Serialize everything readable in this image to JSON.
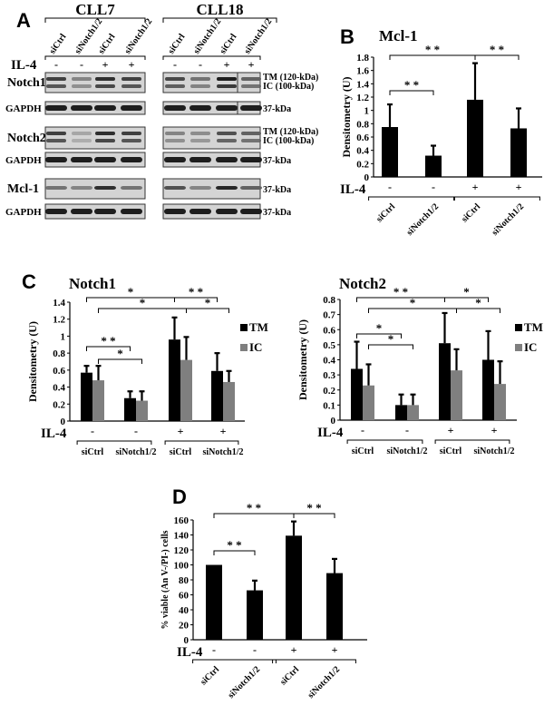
{
  "panels": {
    "A": {
      "letter": "A"
    },
    "B": {
      "letter": "B"
    },
    "C": {
      "letter": "C"
    },
    "D": {
      "letter": "D"
    }
  },
  "western_blot": {
    "groups": [
      "CLL7",
      "CLL18"
    ],
    "lanes": [
      "siCtrl",
      "siNotch1/2",
      "siCtrl",
      "siNotch1/2"
    ],
    "il4_label": "IL-4",
    "il4_signs": [
      "-",
      "-",
      "+",
      "+"
    ],
    "rows": [
      {
        "name": "Notch1",
        "right_labels": [
          "TM (120-kDa)",
          "IC (100-kDa)"
        ]
      },
      {
        "name": "GAPDH",
        "right_labels": [
          "37-kDa"
        ]
      },
      {
        "name": "Notch2",
        "right_labels": [
          "TM (120-kDa)",
          "IC (100-kDa)"
        ]
      },
      {
        "name": "GAPDH",
        "right_labels": [
          "37-kDa"
        ]
      },
      {
        "name": "Mcl-1",
        "right_labels": [
          "37-kDa"
        ]
      },
      {
        "name": "GAPDH",
        "right_labels": [
          "37-kDa"
        ]
      }
    ]
  },
  "chart_data": [
    {
      "panel": "B",
      "type": "bar",
      "title": "Mcl-1",
      "ylabel": "Densitometry (U)",
      "xlabel": "",
      "categories": [
        "siCtrl",
        "siNotch1/2",
        "siCtrl",
        "siNotch1/2"
      ],
      "il4": [
        "-",
        "-",
        "+",
        "+"
      ],
      "values": [
        0.75,
        0.32,
        1.16,
        0.73
      ],
      "errors": [
        0.34,
        0.15,
        0.55,
        0.3
      ],
      "ylim": [
        0,
        1.8
      ],
      "yticks": [
        "0",
        "0.2",
        "0.4",
        "0.6",
        "0.8",
        "1",
        "1.2",
        "1.4",
        "1.6",
        "1.8"
      ],
      "significance": [
        {
          "from": 0,
          "to": 1,
          "label": "**"
        },
        {
          "from": 0,
          "to": 2,
          "label": "**"
        },
        {
          "from": 2,
          "to": 3,
          "label": "**"
        }
      ],
      "color": "#000000"
    },
    {
      "panel": "C",
      "type": "bar",
      "title": "Notch1",
      "ylabel": "Densitometry (U)",
      "categories": [
        "siCtrl",
        "siNotch1/2",
        "siCtrl",
        "siNotch1/2"
      ],
      "il4": [
        "-",
        "-",
        "+",
        "+"
      ],
      "series": [
        {
          "name": "TM",
          "color": "#000000",
          "values": [
            0.57,
            0.27,
            0.96,
            0.59
          ],
          "errors": [
            0.08,
            0.08,
            0.26,
            0.21
          ]
        },
        {
          "name": "IC",
          "color": "#7f7f7f",
          "values": [
            0.48,
            0.24,
            0.72,
            0.46
          ],
          "errors": [
            0.17,
            0.11,
            0.27,
            0.13
          ]
        }
      ],
      "ylim": [
        0,
        1.4
      ],
      "yticks": [
        "0",
        "0.2",
        "0.4",
        "0.6",
        "0.8",
        "1",
        "1.2",
        "1.4"
      ],
      "legend_position": "right",
      "significance": [
        {
          "from": "0TM",
          "to": "1TM",
          "label": "**"
        },
        {
          "from": "0IC",
          "to": "1IC",
          "label": "*"
        },
        {
          "from": "0TM",
          "to": "2TM",
          "label": "*"
        },
        {
          "from": "0IC",
          "to": "2IC",
          "label": "*"
        },
        {
          "from": "2TM",
          "to": "3TM",
          "label": "**"
        },
        {
          "from": "2IC",
          "to": "3IC",
          "label": "*"
        }
      ]
    },
    {
      "panel": "C",
      "type": "bar",
      "title": "Notch2",
      "ylabel": "Densitometry (U)",
      "categories": [
        "siCtrl",
        "siNotch1/2",
        "siCtrl",
        "siNotch1/2"
      ],
      "il4": [
        "-",
        "-",
        "+",
        "+"
      ],
      "series": [
        {
          "name": "TM",
          "color": "#000000",
          "values": [
            0.34,
            0.1,
            0.51,
            0.4
          ],
          "errors": [
            0.18,
            0.07,
            0.2,
            0.19
          ]
        },
        {
          "name": "IC",
          "color": "#7f7f7f",
          "values": [
            0.23,
            0.1,
            0.33,
            0.24
          ],
          "errors": [
            0.14,
            0.07,
            0.14,
            0.15
          ]
        }
      ],
      "ylim": [
        0,
        0.8
      ],
      "yticks": [
        "0",
        "0.1",
        "0.2",
        "0.3",
        "0.4",
        "0.5",
        "0.6",
        "0.7",
        "0.8"
      ],
      "legend_position": "right",
      "significance": [
        {
          "from": "0TM",
          "to": "1TM",
          "label": "*"
        },
        {
          "from": "0IC",
          "to": "1IC",
          "label": "*"
        },
        {
          "from": "0TM",
          "to": "2TM",
          "label": "**"
        },
        {
          "from": "0IC",
          "to": "2IC",
          "label": "*"
        },
        {
          "from": "2TM",
          "to": "3TM",
          "label": "*"
        },
        {
          "from": "2IC",
          "to": "3IC",
          "label": "*"
        }
      ]
    },
    {
      "panel": "D",
      "type": "bar",
      "title": "",
      "ylabel": "% viable (An V-/PI-) cells",
      "categories": [
        "siCtrl",
        "siNotch1/2",
        "siCtrl",
        "siNotch1/2"
      ],
      "il4": [
        "-",
        "-",
        "+",
        "+"
      ],
      "values": [
        100,
        66,
        139,
        89
      ],
      "errors": [
        0,
        13,
        19,
        19
      ],
      "ylim": [
        0,
        160
      ],
      "yticks": [
        "0",
        "20",
        "40",
        "60",
        "80",
        "100",
        "120",
        "140",
        "160"
      ],
      "significance": [
        {
          "from": 0,
          "to": 1,
          "label": "**"
        },
        {
          "from": 0,
          "to": 2,
          "label": "**"
        },
        {
          "from": 2,
          "to": 3,
          "label": "**"
        }
      ],
      "color": "#000000"
    }
  ]
}
